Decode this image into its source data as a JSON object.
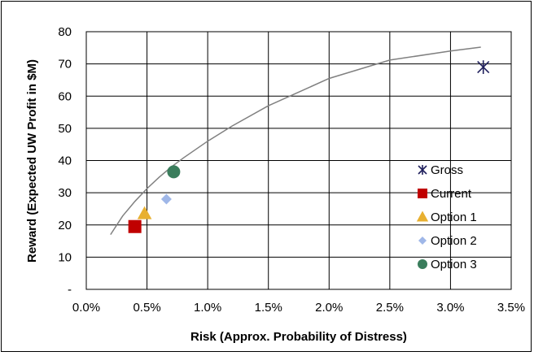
{
  "chart_data": {
    "type": "scatter",
    "title": "",
    "xlabel": "Risk (Approx. Probability of Distress)",
    "ylabel": "Reward (Expected UW Profit in $M)",
    "xlim": [
      0,
      3.5
    ],
    "ylim": [
      0,
      80
    ],
    "x_ticks": [
      "0.0%",
      "0.5%",
      "1.0%",
      "1.5%",
      "2.0%",
      "2.5%",
      "3.0%",
      "3.5%"
    ],
    "x_tick_values": [
      0,
      0.5,
      1.0,
      1.5,
      2.0,
      2.5,
      3.0,
      3.5
    ],
    "y_ticks": [
      "-",
      "10",
      "20",
      "30",
      "40",
      "50",
      "60",
      "70",
      "80"
    ],
    "y_tick_values": [
      0,
      10,
      20,
      30,
      40,
      50,
      60,
      70,
      80
    ],
    "grid": true,
    "legend_position": "right",
    "series": [
      {
        "name": "Gross",
        "marker": "star",
        "color": "#1f1f5c",
        "x": 3.27,
        "y": 69
      },
      {
        "name": "Current",
        "marker": "square",
        "color": "#c00000",
        "x": 0.4,
        "y": 19.5
      },
      {
        "name": "Option 1",
        "marker": "triangle",
        "color": "#e8b030",
        "x": 0.48,
        "y": 23.5
      },
      {
        "name": "Option 2",
        "marker": "diamond",
        "color": "#9fb7e8",
        "x": 0.66,
        "y": 28
      },
      {
        "name": "Option 3",
        "marker": "circle",
        "color": "#3a7d5c",
        "x": 0.72,
        "y": 36.5
      }
    ],
    "frontier": {
      "color": "#808080",
      "x": [
        0.2,
        0.3,
        0.4,
        0.5,
        0.6,
        0.7,
        0.8,
        1.0,
        1.2,
        1.5,
        2.0,
        2.5,
        3.0,
        3.25
      ],
      "y": [
        17,
        22.8,
        27.3,
        31.3,
        34.8,
        38,
        40.8,
        46,
        50.7,
        57,
        65.5,
        71.2,
        74,
        75.2
      ]
    }
  }
}
